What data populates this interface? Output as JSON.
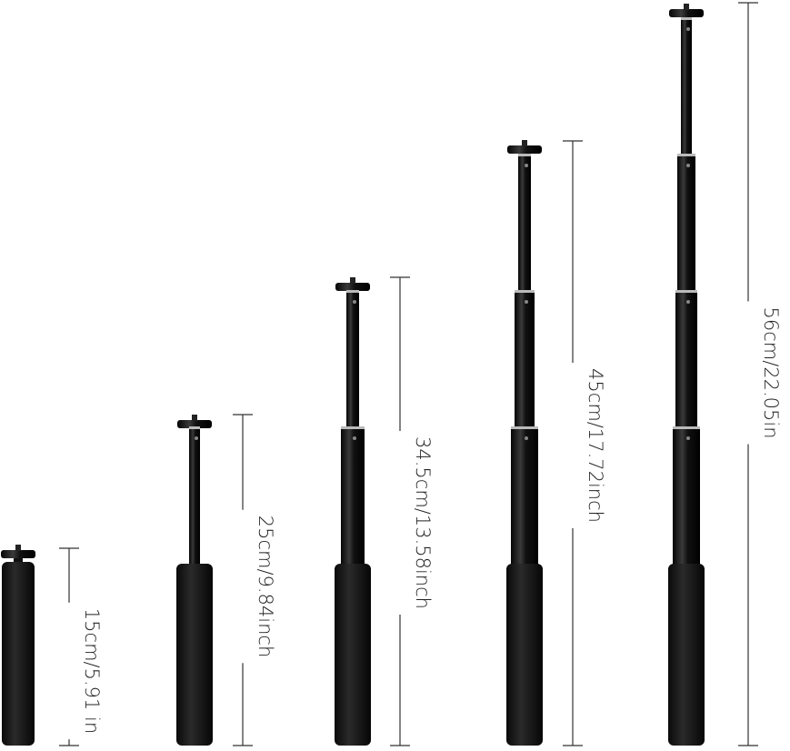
{
  "poles": [
    {
      "label": "15cm/5.91 in"
    },
    {
      "label": "25cm/9.84inch"
    },
    {
      "label": "34.5cm/13.58inch"
    },
    {
      "label": "45cm/17.72inch"
    },
    {
      "label": "56cm/22.05in"
    }
  ]
}
